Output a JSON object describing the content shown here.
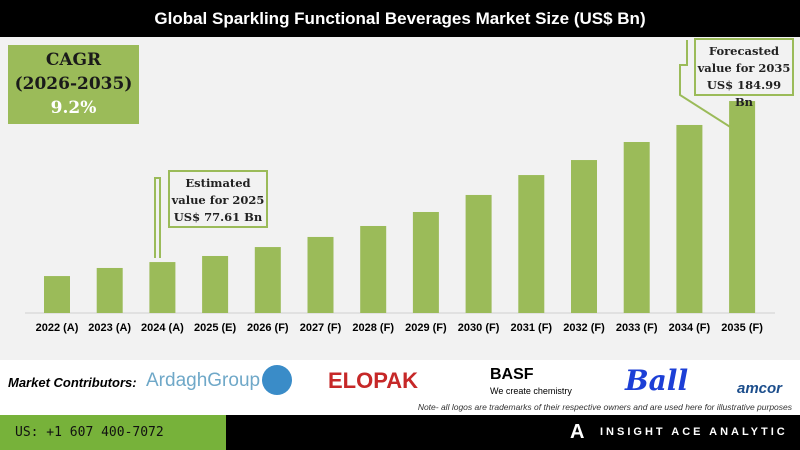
{
  "chart_data": {
    "type": "bar",
    "title": "Global Sparkling Functional Beverages Market Size (US$ Bn)",
    "categories": [
      "2022 (A)",
      "2023 (A)",
      "2024 (A)",
      "2025 (E)",
      "2026 (F)",
      "2027 (F)",
      "2028 (F)",
      "2029 (F)",
      "2030 (F)",
      "2031 (F)",
      "2032 (F)",
      "2033 (F)",
      "2034 (F)",
      "2035 (F)"
    ],
    "values": [
      63.7,
      69.3,
      73.4,
      77.61,
      83.8,
      90.8,
      98.4,
      108.1,
      119.9,
      133.7,
      144.1,
      156.6,
      168.4,
      184.99
    ],
    "bar_color": "#9bbb59",
    "grid": false,
    "annotations": {
      "estimated": [
        "Estimated",
        "value for 2025",
        "US$ 77.61 Bn"
      ],
      "forecasted": [
        "Forecasted",
        "value for 2035",
        "US$ 184.99 Bn"
      ]
    }
  },
  "cagr": {
    "label": "CAGR",
    "period": "(2026-2035)",
    "value": "9.2%"
  },
  "contributors": {
    "label": "Market Contributors:",
    "logos": [
      "ArdaghGroup",
      "ELOPAK",
      "BASF",
      "We create chemistry",
      "Ball",
      "amcor"
    ],
    "note": "Note- all logos are trademarks of their respective owners and are used here for illustrative purposes"
  },
  "footer": {
    "phone": "US: +1 607 400-7072",
    "brand": "INSIGHT ACE ANALYTIC"
  }
}
